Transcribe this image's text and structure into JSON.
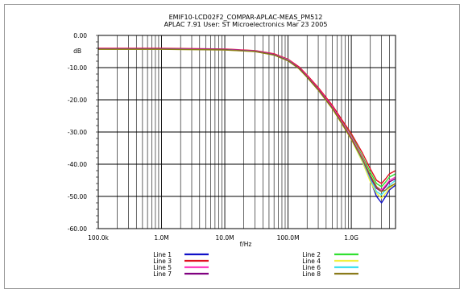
{
  "chart_data": {
    "type": "line",
    "title": "EMIF10-LCD02F2_COMPAR-APLAC-MEAS_PM512",
    "subtitle": "APLAC 7.91 User: ST Microelectronics  Mar 23 2005",
    "xlabel": "f/Hz",
    "ylabel": "dB",
    "x_scale": "log",
    "xlim": [
      100000,
      5000000000
    ],
    "ylim": [
      -60,
      0
    ],
    "grid": true,
    "x_ticks": [
      {
        "value": 100000,
        "label": "100.0k"
      },
      {
        "value": 1000000,
        "label": "1.0M"
      },
      {
        "value": 10000000,
        "label": "10.0M"
      },
      {
        "value": 100000000,
        "label": "100.0M"
      },
      {
        "value": 1000000000,
        "label": "1.0G"
      }
    ],
    "y_ticks": [
      {
        "value": 0,
        "label": "0.00"
      },
      {
        "value": -10,
        "label": "-10.00"
      },
      {
        "value": -20,
        "label": "-20.00"
      },
      {
        "value": -30,
        "label": "-30.00"
      },
      {
        "value": -40,
        "label": "-40.00"
      },
      {
        "value": -50,
        "label": "-50.00"
      },
      {
        "value": -60,
        "label": "-60.00"
      }
    ],
    "legend_placement": "bottom",
    "x": [
      100000,
      1000000,
      10000000,
      30000000,
      60000000,
      100000000,
      150000000,
      200000000,
      300000000,
      500000000,
      700000000,
      1000000000,
      1500000000,
      2000000000,
      2500000000,
      3000000000,
      3500000000,
      4000000000,
      5000000000
    ],
    "series": [
      {
        "name": "Line 1",
        "color": "#1010c8",
        "values": [
          -4.2,
          -4.2,
          -4.4,
          -4.9,
          -6.0,
          -7.8,
          -10.2,
          -12.8,
          -16.8,
          -22.5,
          -27.0,
          -32.0,
          -39.0,
          -45.0,
          -50.0,
          -52.0,
          -50.0,
          -48.0,
          -46.5
        ]
      },
      {
        "name": "Line 2",
        "color": "#30e030",
        "values": [
          -4.1,
          -4.1,
          -4.3,
          -4.8,
          -5.8,
          -7.5,
          -10.0,
          -12.5,
          -16.5,
          -22.0,
          -26.5,
          -31.0,
          -37.5,
          -42.5,
          -46.0,
          -47.0,
          -45.5,
          -44.0,
          -43.0
        ]
      },
      {
        "name": "Line 3",
        "color": "#e01020",
        "values": [
          -4.0,
          -4.0,
          -4.2,
          -4.7,
          -5.7,
          -7.4,
          -9.8,
          -12.3,
          -16.2,
          -21.7,
          -26.0,
          -30.5,
          -36.5,
          -41.5,
          -45.0,
          -46.0,
          -44.5,
          -43.0,
          -42.0
        ]
      },
      {
        "name": "Line 4",
        "color": "#f0f040",
        "values": [
          -4.3,
          -4.3,
          -4.5,
          -5.0,
          -6.1,
          -7.9,
          -10.4,
          -13.0,
          -17.0,
          -22.8,
          -27.3,
          -32.3,
          -39.3,
          -45.5,
          -49.0,
          -50.5,
          -49.0,
          -47.5,
          -46.0
        ]
      },
      {
        "name": "Line 5",
        "color": "#ff40c0",
        "values": [
          -4.1,
          -4.1,
          -4.3,
          -4.8,
          -5.9,
          -7.6,
          -10.1,
          -12.6,
          -16.6,
          -22.2,
          -26.7,
          -31.5,
          -38.0,
          -43.5,
          -47.0,
          -48.0,
          -46.5,
          -45.0,
          -44.0
        ]
      },
      {
        "name": "Line 6",
        "color": "#40e0f0",
        "values": [
          -4.2,
          -4.2,
          -4.4,
          -4.9,
          -6.0,
          -7.7,
          -10.3,
          -12.9,
          -16.9,
          -22.6,
          -27.1,
          -32.1,
          -38.8,
          -44.5,
          -48.5,
          -49.5,
          -48.0,
          -46.5,
          -45.0
        ]
      },
      {
        "name": "Line 7",
        "color": "#800080",
        "values": [
          -4.2,
          -4.2,
          -4.4,
          -4.9,
          -6.0,
          -7.8,
          -10.2,
          -12.8,
          -16.8,
          -22.5,
          -27.0,
          -32.0,
          -38.5,
          -44.0,
          -47.5,
          -48.5,
          -47.0,
          -45.5,
          -44.5
        ]
      },
      {
        "name": "Line 8",
        "color": "#8a7a1a",
        "values": [
          -4.3,
          -4.3,
          -4.5,
          -5.0,
          -6.1,
          -7.9,
          -10.4,
          -13.0,
          -17.0,
          -22.7,
          -27.2,
          -32.2,
          -38.5,
          -43.5,
          -47.0,
          -48.5,
          -48.0,
          -47.0,
          -46.0
        ]
      }
    ]
  }
}
